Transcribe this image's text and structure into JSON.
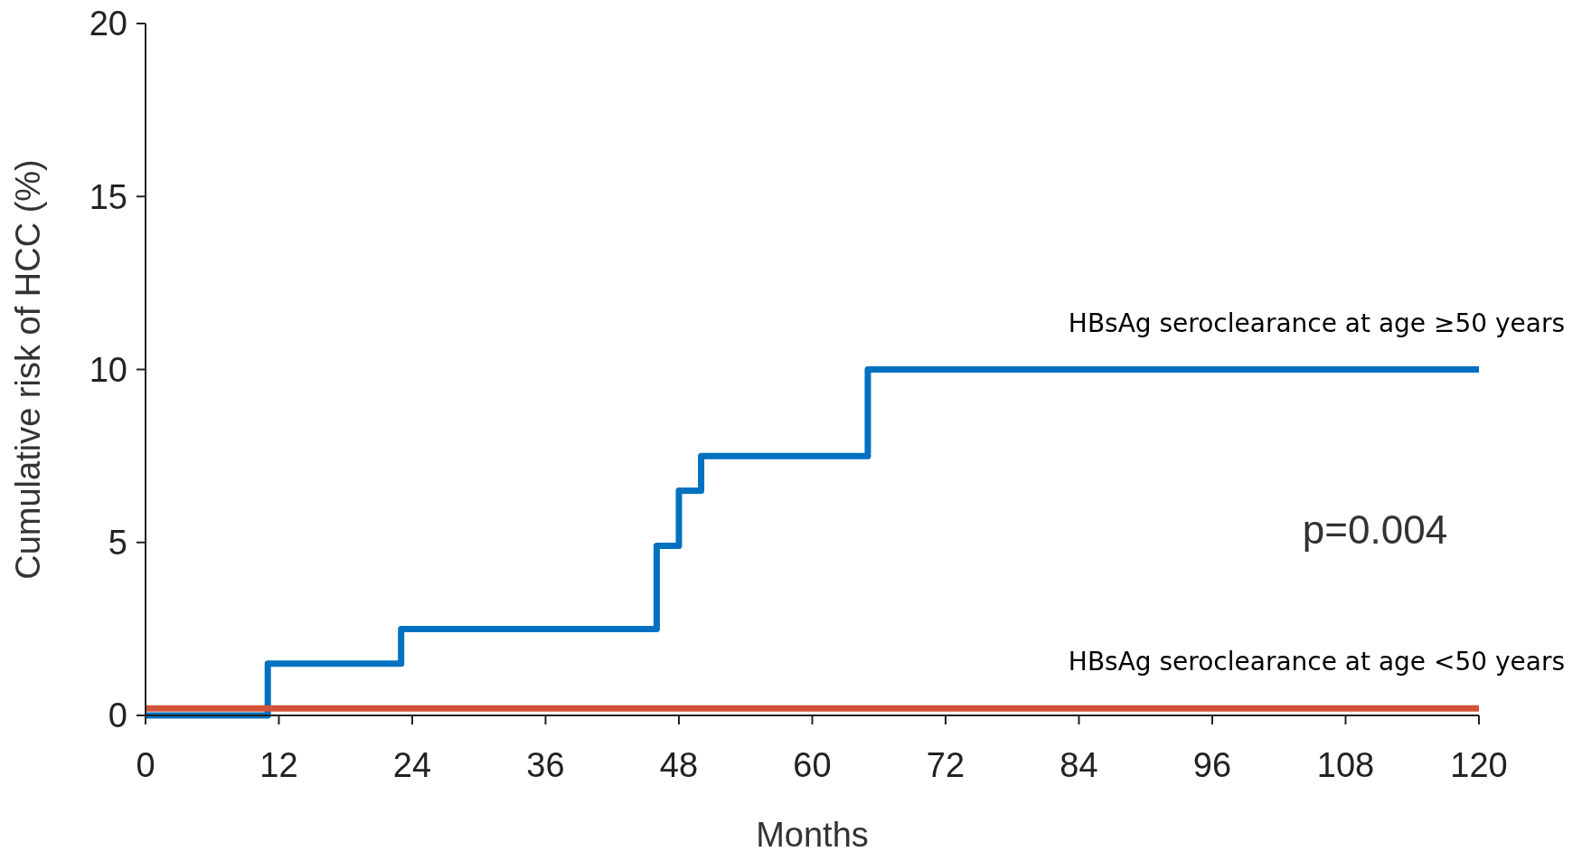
{
  "chart_data": {
    "type": "step",
    "xlabel": "Months",
    "ylabel": "Cumulative risk of HCC (%)",
    "xlim": [
      0,
      120
    ],
    "xticks": [
      0,
      12,
      24,
      36,
      48,
      60,
      72,
      84,
      96,
      108,
      120
    ],
    "ylim": [
      0,
      20
    ],
    "yticks": [
      0,
      5,
      10,
      15,
      20
    ],
    "grid": false,
    "series": [
      {
        "name": "HBsAg seroclearance at age ≥50 years",
        "color": "#0070c0",
        "x": [
          0,
          11,
          23,
          46,
          48,
          50,
          65,
          120
        ],
        "values": [
          0,
          1.5,
          2.5,
          4.9,
          6.5,
          7.5,
          10,
          10
        ]
      },
      {
        "name": "HBsAg seroclearance at age <50 years",
        "color": "#d0533a",
        "x": [
          0,
          120
        ],
        "values": [
          0.2,
          0.2
        ]
      }
    ],
    "annotations": [
      "p=0.004"
    ]
  }
}
